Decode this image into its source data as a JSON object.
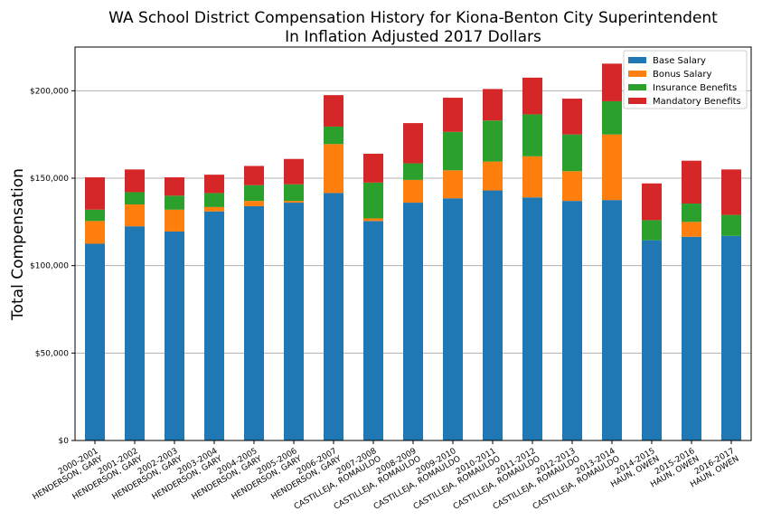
{
  "chart_data": {
    "type": "bar",
    "stacked": true,
    "title": "WA School District Compensation History for Kiona-Benton City Superintendent",
    "subtitle": "In Inflation Adjusted 2017 Dollars",
    "ylabel": "Total Compensation",
    "xlabel": "",
    "ylim": [
      0,
      225000
    ],
    "yticks": [
      0,
      50000,
      100000,
      150000,
      200000
    ],
    "ytick_labels": [
      "$0",
      "$50,000",
      "$100,000",
      "$150,000",
      "$200,000"
    ],
    "grid": "horizontal",
    "legend_position": "top-right",
    "categories": [
      [
        "2000-2001",
        "HENDERSON, GARY"
      ],
      [
        "2001-2002",
        "HENDERSON, GARY"
      ],
      [
        "2002-2003",
        "HENDERSON, GARY"
      ],
      [
        "2003-2004",
        "HENDERSON, GARY"
      ],
      [
        "2004-2005",
        "HENDERSON, GARY"
      ],
      [
        "2005-2006",
        "HENDERSON, GARY"
      ],
      [
        "2006-2007",
        "HENDERSON, GARY"
      ],
      [
        "2007-2008",
        "CASTILLEJA, ROMAULDO"
      ],
      [
        "2008-2009",
        "CASTILLEJA, ROMAULDO"
      ],
      [
        "2009-2010",
        "CASTILLEJA, ROMAULDO"
      ],
      [
        "2010-2011",
        "CASTILLEJA, ROMAULDO"
      ],
      [
        "2011-2012",
        "CASTILLEJA, ROMAULDO"
      ],
      [
        "2012-2013",
        "CASTILLEJA, ROMAULDO"
      ],
      [
        "2013-2014",
        "CASTILLEJA, ROMAULDO"
      ],
      [
        "2014-2015",
        "HAUN, OWEN"
      ],
      [
        "2015-2016",
        "HAUN, OWEN"
      ],
      [
        "2016-2017",
        "HAUN, OWEN"
      ]
    ],
    "series": [
      {
        "name": "Base Salary",
        "color": "#1f77b4",
        "values": [
          112500,
          122500,
          119500,
          131000,
          134000,
          136000,
          141500,
          125500,
          136000,
          138500,
          143000,
          139000,
          137000,
          137500,
          114500,
          116500,
          117000
        ]
      },
      {
        "name": "Bonus Salary",
        "color": "#ff7f0e",
        "values": [
          13000,
          12500,
          12500,
          2500,
          3000,
          1000,
          28000,
          1500,
          13000,
          16000,
          16500,
          23500,
          17000,
          37500,
          0,
          8500,
          0
        ]
      },
      {
        "name": "Insurance Benefits",
        "color": "#2ca02c",
        "values": [
          6500,
          7000,
          8000,
          8000,
          9000,
          9500,
          10000,
          20500,
          9500,
          22000,
          23500,
          24000,
          21000,
          19000,
          11500,
          10500,
          12000
        ]
      },
      {
        "name": "Mandatory Benefits",
        "color": "#d62728",
        "values": [
          18500,
          13000,
          10500,
          10500,
          11000,
          14500,
          18000,
          16500,
          23000,
          19500,
          18000,
          21000,
          20500,
          21500,
          21000,
          24500,
          26000
        ]
      }
    ]
  }
}
